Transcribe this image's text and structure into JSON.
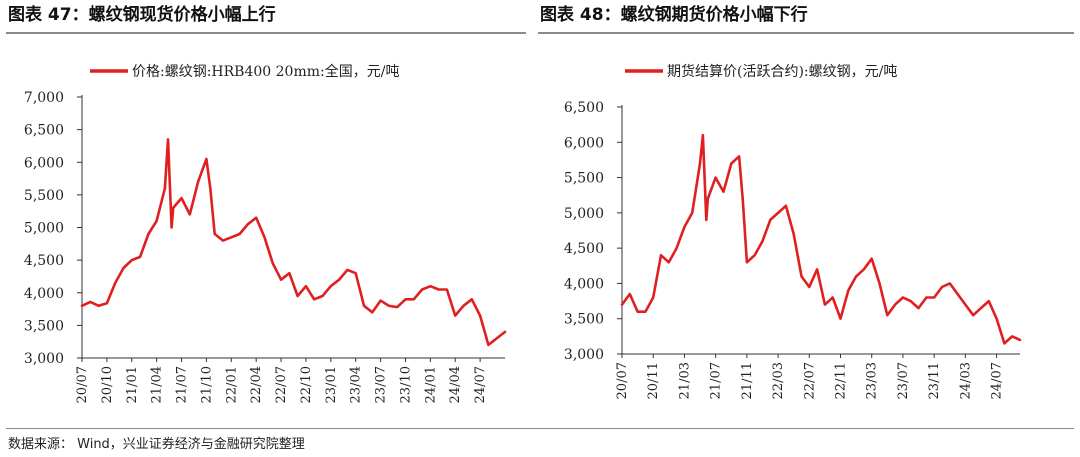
{
  "left_title": "图表 47：螺纹钢现货价格小幅上行",
  "right_title": "图表 48：螺纹钢期货价格小幅下行",
  "source": "数据来源： Wind，兴业证券经济与金融研究院整理",
  "colors": {
    "series": "#e02020",
    "axis": "#333333"
  },
  "chart_data": [
    {
      "type": "line",
      "title": "",
      "xlabel": "",
      "ylabel": "",
      "legend_position": "top",
      "grid": false,
      "ylim": [
        3000,
        7000
      ],
      "xlim": [
        "2020-07",
        "2024-10"
      ],
      "y_ticks": [
        3000,
        3500,
        4000,
        4500,
        5000,
        5500,
        6000,
        6500,
        7000
      ],
      "y_tick_labels": [
        "3,000",
        "3,500",
        "4,000",
        "4,500",
        "5,000",
        "5,500",
        "6,000",
        "6,500",
        "7,000"
      ],
      "x_tick_labels": [
        "20/07",
        "20/10",
        "21/01",
        "21/04",
        "21/07",
        "21/10",
        "22/01",
        "22/04",
        "22/07",
        "22/10",
        "23/01",
        "23/04",
        "23/07",
        "23/10",
        "24/01",
        "24/04",
        "24/07"
      ],
      "series": [
        {
          "name": "价格:螺纹钢:HRB400 20mm:全国，元/吨",
          "x": [
            "2020-07",
            "2020-08",
            "2020-09",
            "2020-10",
            "2020-11",
            "2020-12",
            "2021-01",
            "2021-02",
            "2021-03",
            "2021-04",
            "2021-05",
            "2021-05-12",
            "2021-05-25",
            "2021-06",
            "2021-07",
            "2021-08",
            "2021-09",
            "2021-10",
            "2021-10-15",
            "2021-11",
            "2021-12",
            "2022-01",
            "2022-02",
            "2022-03",
            "2022-04",
            "2022-05",
            "2022-06",
            "2022-07",
            "2022-08",
            "2022-09",
            "2022-10",
            "2022-11",
            "2022-12",
            "2023-01",
            "2023-02",
            "2023-03",
            "2023-04",
            "2023-05",
            "2023-06",
            "2023-07",
            "2023-08",
            "2023-09",
            "2023-10",
            "2023-11",
            "2023-12",
            "2024-01",
            "2024-02",
            "2024-03",
            "2024-04",
            "2024-05",
            "2024-06",
            "2024-07",
            "2024-08",
            "2024-09",
            "2024-10"
          ],
          "values": [
            3800,
            3860,
            3800,
            3840,
            4150,
            4380,
            4500,
            4550,
            4900,
            5100,
            5600,
            6350,
            5000,
            5300,
            5450,
            5200,
            5700,
            6050,
            5600,
            4900,
            4800,
            4850,
            4900,
            5050,
            5150,
            4850,
            4450,
            4200,
            4300,
            3950,
            4100,
            3900,
            3950,
            4100,
            4200,
            4350,
            4300,
            3800,
            3700,
            3880,
            3800,
            3780,
            3900,
            3900,
            4050,
            4100,
            4050,
            4050,
            3650,
            3800,
            3900,
            3650,
            3200,
            3300,
            3400
          ]
        }
      ]
    },
    {
      "type": "line",
      "title": "",
      "xlabel": "",
      "ylabel": "",
      "legend_position": "top",
      "grid": false,
      "ylim": [
        3000,
        6500
      ],
      "xlim": [
        "2020-07",
        "2024-10"
      ],
      "y_ticks": [
        3000,
        3500,
        4000,
        4500,
        5000,
        5500,
        6000,
        6500
      ],
      "y_tick_labels": [
        "3,000",
        "3,500",
        "4,000",
        "4,500",
        "5,000",
        "5,500",
        "6,000",
        "6,500"
      ],
      "x_tick_labels": [
        "20/07",
        "20/11",
        "21/03",
        "21/07",
        "21/11",
        "22/03",
        "22/07",
        "22/11",
        "23/03",
        "23/07",
        "23/11",
        "24/03",
        "24/07"
      ],
      "series": [
        {
          "name": "期货结算价(活跃合约):螺纹钢，元/吨",
          "x": [
            "2020-07",
            "2020-08",
            "2020-09",
            "2020-10",
            "2020-11",
            "2020-12",
            "2021-01",
            "2021-02",
            "2021-03",
            "2021-04",
            "2021-05",
            "2021-05-12",
            "2021-05-25",
            "2021-06",
            "2021-07",
            "2021-08",
            "2021-09",
            "2021-10",
            "2021-10-15",
            "2021-11",
            "2021-12",
            "2022-01",
            "2022-02",
            "2022-03",
            "2022-04",
            "2022-05",
            "2022-06",
            "2022-07",
            "2022-08",
            "2022-09",
            "2022-10",
            "2022-11",
            "2022-12",
            "2023-01",
            "2023-02",
            "2023-03",
            "2023-04",
            "2023-05",
            "2023-06",
            "2023-07",
            "2023-08",
            "2023-09",
            "2023-10",
            "2023-11",
            "2023-12",
            "2024-01",
            "2024-02",
            "2024-03",
            "2024-04",
            "2024-05",
            "2024-06",
            "2024-07",
            "2024-08",
            "2024-09",
            "2024-10"
          ],
          "values": [
            3700,
            3850,
            3600,
            3600,
            3800,
            4400,
            4300,
            4500,
            4800,
            5000,
            5700,
            6100,
            4900,
            5200,
            5500,
            5300,
            5700,
            5800,
            5200,
            4300,
            4400,
            4600,
            4900,
            5000,
            5100,
            4700,
            4100,
            3950,
            4200,
            3700,
            3800,
            3500,
            3900,
            4100,
            4200,
            4350,
            4000,
            3550,
            3700,
            3800,
            3750,
            3650,
            3800,
            3800,
            3950,
            4000,
            3850,
            3700,
            3550,
            3650,
            3750,
            3500,
            3150,
            3250,
            3200
          ]
        }
      ]
    }
  ]
}
